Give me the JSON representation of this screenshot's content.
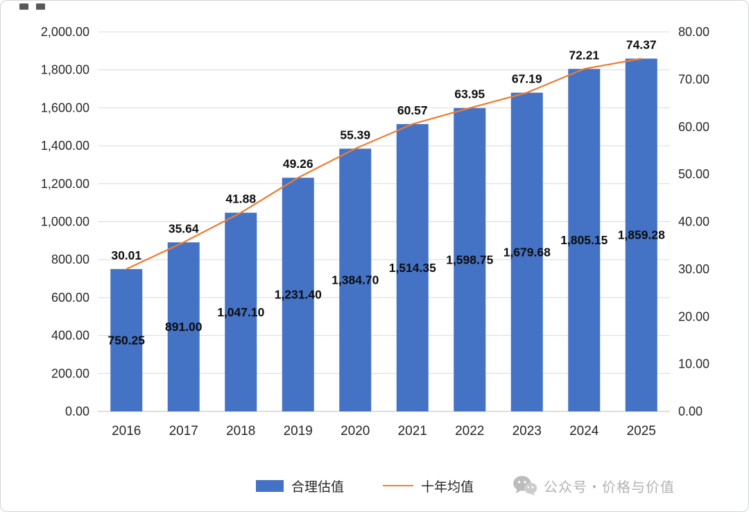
{
  "chart_data": {
    "type": "bar",
    "subtype": "bar-with-line-overlay",
    "categories": [
      "2016",
      "2017",
      "2018",
      "2019",
      "2020",
      "2021",
      "2022",
      "2023",
      "2024",
      "2025"
    ],
    "series": [
      {
        "name": "合理估值",
        "type": "bar",
        "axis": "left",
        "color": "#4472C4",
        "values": [
          750.25,
          891.0,
          1047.1,
          1231.4,
          1384.7,
          1514.35,
          1598.75,
          1679.68,
          1805.15,
          1859.28
        ],
        "labels": [
          "750.25",
          "891.00",
          "1,047.10",
          "1,231.40",
          "1,384.70",
          "1,514.35",
          "1,598.75",
          "1,679.68",
          "1,805.15",
          "1,859.28"
        ]
      },
      {
        "name": "十年均值",
        "type": "line",
        "axis": "right",
        "color": "#ED7D31",
        "values": [
          30.01,
          35.64,
          41.88,
          49.26,
          55.39,
          60.57,
          63.95,
          67.19,
          72.21,
          74.37
        ],
        "labels": [
          "30.01",
          "35.64",
          "41.88",
          "49.26",
          "55.39",
          "60.57",
          "63.95",
          "67.19",
          "72.21",
          "74.37"
        ]
      }
    ],
    "left_axis": {
      "min": 0,
      "max": 2000,
      "step": 200,
      "ticks": [
        "0.00",
        "200.00",
        "400.00",
        "600.00",
        "800.00",
        "1,000.00",
        "1,200.00",
        "1,400.00",
        "1,600.00",
        "1,800.00",
        "2,000.00"
      ]
    },
    "right_axis": {
      "min": 0,
      "max": 80,
      "step": 10,
      "ticks": [
        "0.00",
        "10.00",
        "20.00",
        "30.00",
        "40.00",
        "50.00",
        "60.00",
        "70.00",
        "80.00"
      ]
    },
    "grid": true,
    "legend_position": "bottom",
    "title": ""
  },
  "legend": {
    "bar_label": "合理估值",
    "line_label": "十年均值"
  },
  "watermark": {
    "icon": "wechat-icon",
    "text": "公众号・价格与价值"
  }
}
